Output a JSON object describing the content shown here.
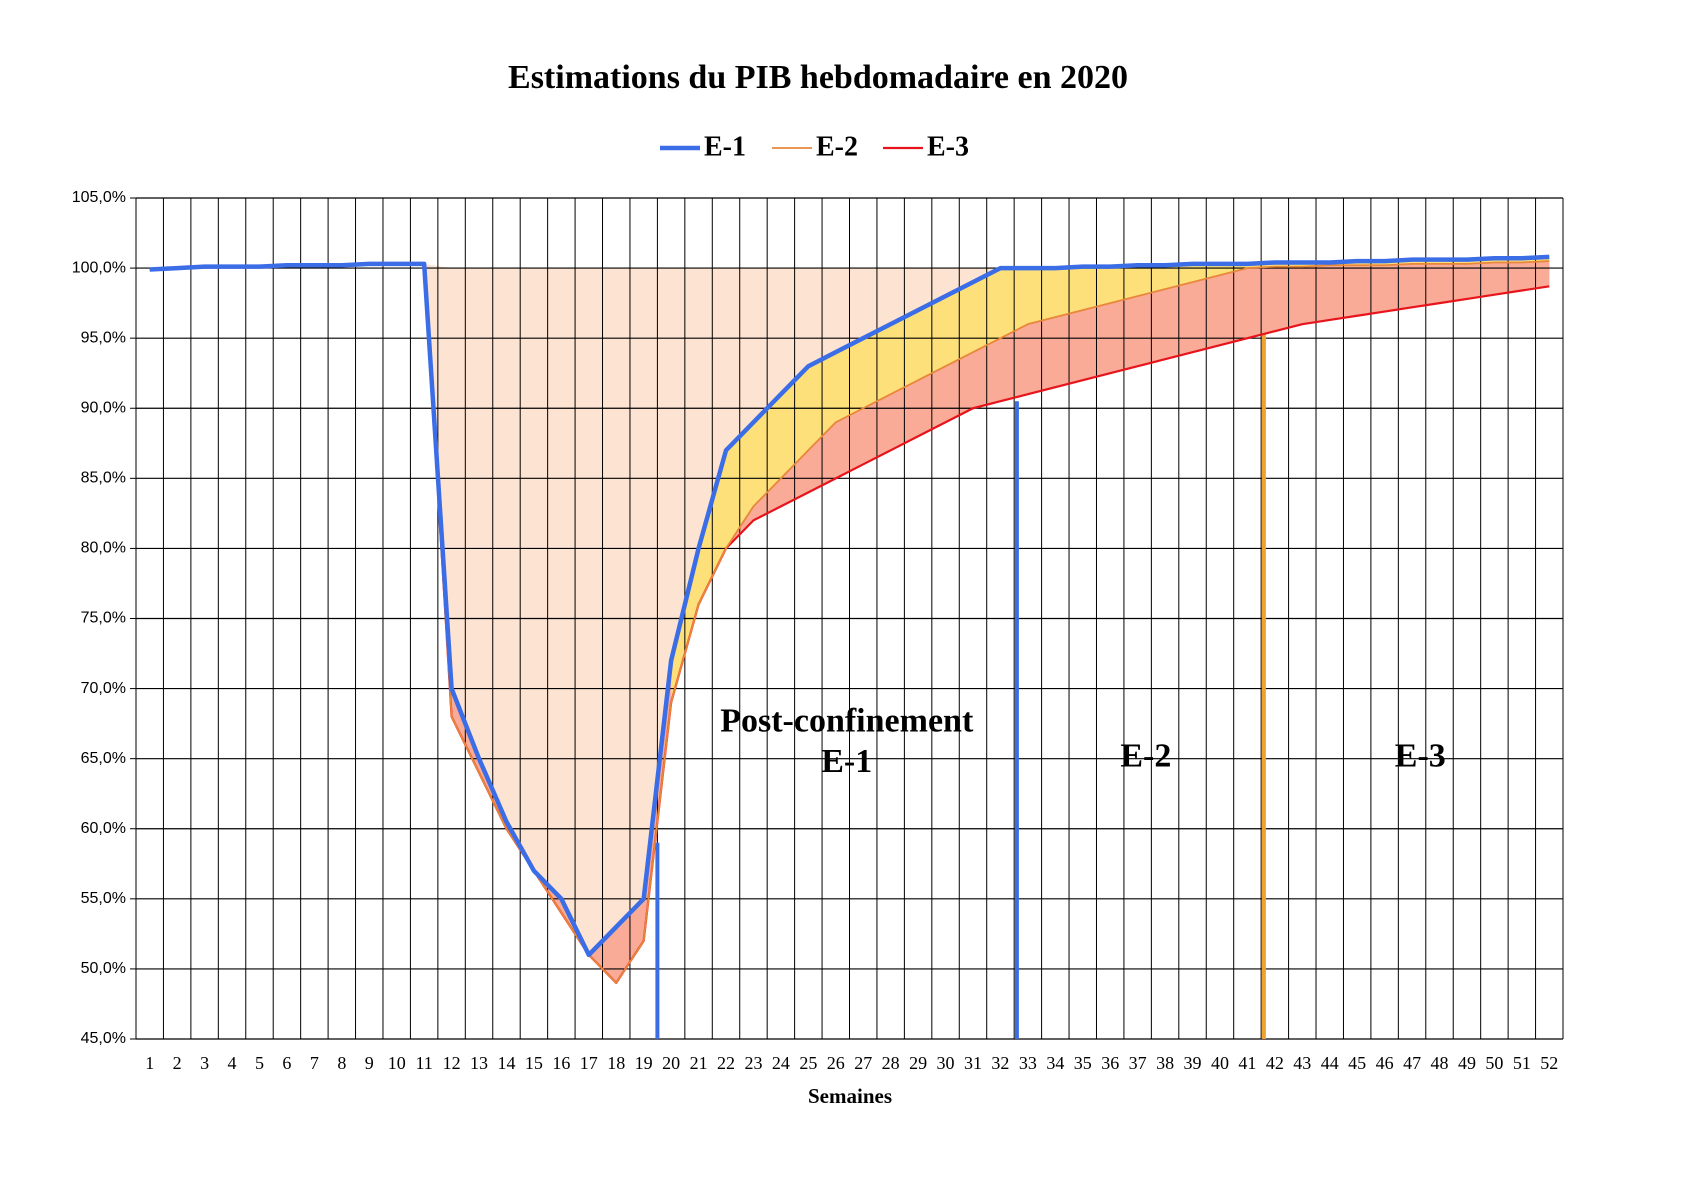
{
  "chart_data": {
    "type": "line",
    "title": "Estimations du PIB hebdomadaire en 2020",
    "x_label": "Semaines",
    "categories": [
      "1",
      "2",
      "3",
      "4",
      "5",
      "6",
      "7",
      "8",
      "9",
      "10",
      "11",
      "12",
      "13",
      "14",
      "15",
      "16",
      "17",
      "18",
      "19",
      "20",
      "21",
      "22",
      "23",
      "24",
      "25",
      "26",
      "27",
      "28",
      "29",
      "30",
      "31",
      "32",
      "33",
      "34",
      "35",
      "36",
      "37",
      "38",
      "39",
      "40",
      "41",
      "42",
      "43",
      "44",
      "45",
      "46",
      "47",
      "48",
      "49",
      "50",
      "51",
      "52"
    ],
    "series": [
      {
        "name": "E-1",
        "color": "#3b6de6",
        "values": [
          99.9,
          100,
          100.1,
          100.1,
          100.1,
          100.2,
          100.2,
          100.2,
          100.3,
          100.3,
          100.3,
          70,
          65,
          60.5,
          57,
          55,
          51,
          53,
          55,
          72,
          80,
          87,
          89,
          91,
          93,
          94,
          95,
          96,
          97,
          98,
          99,
          100,
          100,
          100,
          100.1,
          100.1,
          100.2,
          100.2,
          100.3,
          100.3,
          100.3,
          100.4,
          100.4,
          100.4,
          100.5,
          100.5,
          100.6,
          100.6,
          100.6,
          100.7,
          100.7,
          100.8
        ]
      },
      {
        "name": "E-2",
        "color": "#e8873a",
        "values": [
          99.9,
          100,
          100.1,
          100.1,
          100.1,
          100.2,
          100.2,
          100.2,
          100.3,
          100.3,
          100.3,
          68,
          64,
          60,
          57,
          54,
          51,
          49,
          52,
          69,
          76,
          80,
          83,
          85,
          87,
          89,
          90,
          91,
          92,
          93,
          94,
          95,
          96,
          96.5,
          97,
          97.5,
          98,
          98.5,
          99,
          99.5,
          100,
          100.1,
          100.1,
          100.2,
          100.2,
          100.2,
          100.3,
          100.3,
          100.3,
          100.4,
          100.4,
          100.5
        ]
      },
      {
        "name": "E-3",
        "color": "#e8141c",
        "values": [
          99.9,
          100,
          100.1,
          100.1,
          100.1,
          100.2,
          100.2,
          100.2,
          100.3,
          100.3,
          100.3,
          68,
          64,
          60,
          57,
          54,
          51,
          49,
          52,
          69,
          76,
          80,
          82,
          83,
          84,
          85,
          86,
          87,
          88,
          89,
          90,
          90.5,
          91,
          91.5,
          92,
          92.5,
          93,
          93.5,
          94,
          94.5,
          95,
          95.5,
          96,
          96.3,
          96.6,
          96.9,
          97.2,
          97.5,
          97.8,
          98.1,
          98.4,
          98.7
        ]
      }
    ],
    "ylim": [
      45,
      105
    ],
    "yticks": [
      {
        "value": 45,
        "label": "45,0%"
      },
      {
        "value": 50,
        "label": "50,0%"
      },
      {
        "value": 55,
        "label": "55,0%"
      },
      {
        "value": 60,
        "label": "60,0%"
      },
      {
        "value": 65,
        "label": "65,0%"
      },
      {
        "value": 70,
        "label": "70,0%"
      },
      {
        "value": 75,
        "label": "75,0%"
      },
      {
        "value": 80,
        "label": "80,0%"
      },
      {
        "value": 85,
        "label": "85,0%"
      },
      {
        "value": 90,
        "label": "90,0%"
      },
      {
        "value": 95,
        "label": "95,0%"
      },
      {
        "value": 100,
        "label": "100,0%"
      },
      {
        "value": 105,
        "label": "105,0%"
      }
    ],
    "grid": true,
    "phase_lines": [
      {
        "x": 19.5,
        "ymax": 59,
        "color": "#3b6de6"
      },
      {
        "x": 32.6,
        "ymax": 90.5,
        "color": "#3b6de6"
      },
      {
        "x": 41.6,
        "ymax": 95.3,
        "color": "#f0a030"
      }
    ],
    "annotations": [
      "Post-confinement",
      "E-1",
      "E-2",
      "E-3"
    ]
  }
}
